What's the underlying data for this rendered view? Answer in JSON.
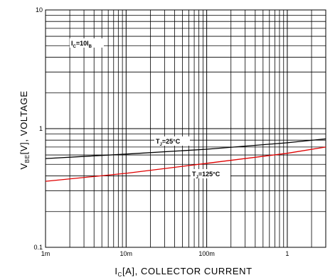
{
  "chart_data": {
    "type": "line",
    "x_scale": "log",
    "y_scale": "log",
    "xlim": [
      0.001,
      3
    ],
    "ylim": [
      0.1,
      10
    ],
    "grid": true,
    "x_ticks": [
      {
        "value": 0.001,
        "label": "1m"
      },
      {
        "value": 0.01,
        "label": "10m"
      },
      {
        "value": 0.1,
        "label": "100m"
      },
      {
        "value": 1,
        "label": "1"
      }
    ],
    "y_ticks": [
      {
        "value": 0.1,
        "label": "0.1"
      },
      {
        "value": 1,
        "label": "1"
      },
      {
        "value": 10,
        "label": "10"
      }
    ],
    "xlabel": {
      "main": "I",
      "sub": "C",
      "rest": "[A], COLLECTOR CURRENT"
    },
    "ylabel": {
      "main": "V",
      "sub": "BE",
      "rest": "[V], VOLTAGE"
    },
    "condition": {
      "main": "I",
      "sub": "C",
      "mid": "=10I",
      "sub2": "B"
    },
    "series": [
      {
        "name": {
          "main": "T",
          "sub": "J",
          "rest": "=25°C"
        },
        "color": "#000000",
        "x": [
          0.001,
          0.01,
          0.1,
          1,
          3
        ],
        "y": [
          0.56,
          0.61,
          0.67,
          0.76,
          0.82
        ]
      },
      {
        "name": {
          "main": "T",
          "sub": "J",
          "rest": "=125°C"
        },
        "color": "#e00000",
        "x": [
          0.001,
          0.01,
          0.1,
          1,
          3
        ],
        "y": [
          0.36,
          0.42,
          0.51,
          0.62,
          0.7
        ]
      }
    ]
  }
}
